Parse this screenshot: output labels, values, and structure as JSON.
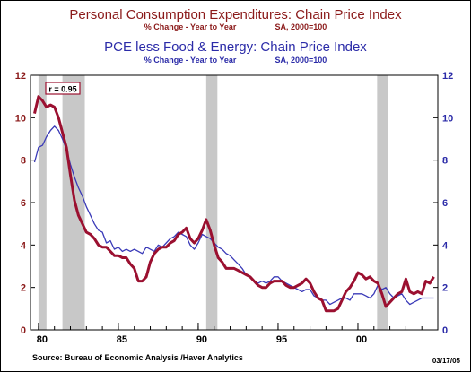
{
  "header": {
    "title_main": "Personal Consumption Expenditures: Chain Price Index",
    "subtitle_main_left": "% Change - Year to Year",
    "subtitle_main_right": "SA, 2000=100",
    "title_second": "PCE less Food & Energy: Chain Price Index",
    "subtitle_second_left": "% Change - Year to Year",
    "subtitle_second_right": "SA, 2000=100"
  },
  "footer": {
    "source": "Source:  Bureau of Economic Analysis /Haver Analytics",
    "date": "03/17/05"
  },
  "colors": {
    "pce": "#9b1030",
    "core": "#3a3ab8",
    "recession": "#c8c8c8",
    "title_main": "#8b1a1a",
    "title_second": "#2b2ba8"
  },
  "chart_data": {
    "type": "line",
    "annotation": "r = 0.95",
    "x_range": [
      1979.5,
      2005.0
    ],
    "y_left_range": [
      0,
      12
    ],
    "y_right_range": [
      0,
      12
    ],
    "y_ticks": [
      0,
      2,
      4,
      6,
      8,
      10,
      12
    ],
    "x_ticks": [
      {
        "x": 1980,
        "label": "80"
      },
      {
        "x": 1985,
        "label": "85"
      },
      {
        "x": 1990,
        "label": "90"
      },
      {
        "x": 1995,
        "label": "95"
      },
      {
        "x": 2000,
        "label": "00"
      }
    ],
    "recessions": [
      [
        1980.0,
        1980.5
      ],
      [
        1981.5,
        1982.9
      ],
      [
        1990.5,
        1991.2
      ],
      [
        2001.2,
        2001.9
      ]
    ],
    "series": [
      {
        "key": "pce",
        "points": [
          [
            1979.75,
            10.2
          ],
          [
            1980.0,
            11.0
          ],
          [
            1980.25,
            10.8
          ],
          [
            1980.5,
            10.5
          ],
          [
            1980.75,
            10.6
          ],
          [
            1981.0,
            10.5
          ],
          [
            1981.25,
            10.0
          ],
          [
            1981.5,
            9.3
          ],
          [
            1981.75,
            8.6
          ],
          [
            1982.0,
            7.3
          ],
          [
            1982.25,
            6.1
          ],
          [
            1982.5,
            5.4
          ],
          [
            1982.75,
            5.0
          ],
          [
            1983.0,
            4.6
          ],
          [
            1983.25,
            4.5
          ],
          [
            1983.5,
            4.3
          ],
          [
            1983.75,
            4.0
          ],
          [
            1984.0,
            3.9
          ],
          [
            1984.25,
            3.9
          ],
          [
            1984.5,
            3.7
          ],
          [
            1984.75,
            3.5
          ],
          [
            1985.0,
            3.5
          ],
          [
            1985.25,
            3.4
          ],
          [
            1985.5,
            3.4
          ],
          [
            1985.75,
            3.1
          ],
          [
            1986.0,
            2.9
          ],
          [
            1986.25,
            2.3
          ],
          [
            1986.5,
            2.3
          ],
          [
            1986.75,
            2.5
          ],
          [
            1987.0,
            3.2
          ],
          [
            1987.25,
            3.6
          ],
          [
            1987.5,
            3.8
          ],
          [
            1987.75,
            3.9
          ],
          [
            1988.0,
            3.9
          ],
          [
            1988.25,
            4.1
          ],
          [
            1988.5,
            4.2
          ],
          [
            1988.75,
            4.5
          ],
          [
            1989.0,
            4.6
          ],
          [
            1989.25,
            4.8
          ],
          [
            1989.5,
            4.3
          ],
          [
            1989.75,
            4.1
          ],
          [
            1990.0,
            4.3
          ],
          [
            1990.25,
            4.7
          ],
          [
            1990.5,
            5.2
          ],
          [
            1990.75,
            4.7
          ],
          [
            1991.0,
            4.0
          ],
          [
            1991.25,
            3.4
          ],
          [
            1991.5,
            3.2
          ],
          [
            1991.75,
            2.9
          ],
          [
            1992.0,
            2.9
          ],
          [
            1992.25,
            2.9
          ],
          [
            1992.5,
            2.8
          ],
          [
            1992.75,
            2.7
          ],
          [
            1993.0,
            2.6
          ],
          [
            1993.25,
            2.5
          ],
          [
            1993.5,
            2.3
          ],
          [
            1993.75,
            2.1
          ],
          [
            1994.0,
            2.0
          ],
          [
            1994.25,
            2.0
          ],
          [
            1994.5,
            2.2
          ],
          [
            1994.75,
            2.3
          ],
          [
            1995.0,
            2.3
          ],
          [
            1995.25,
            2.3
          ],
          [
            1995.5,
            2.1
          ],
          [
            1995.75,
            2.0
          ],
          [
            1996.0,
            2.0
          ],
          [
            1996.25,
            2.1
          ],
          [
            1996.5,
            2.2
          ],
          [
            1996.75,
            2.4
          ],
          [
            1997.0,
            2.2
          ],
          [
            1997.25,
            1.8
          ],
          [
            1997.5,
            1.5
          ],
          [
            1997.75,
            1.4
          ],
          [
            1998.0,
            0.9
          ],
          [
            1998.25,
            0.9
          ],
          [
            1998.5,
            0.9
          ],
          [
            1998.75,
            1.0
          ],
          [
            1999.0,
            1.4
          ],
          [
            1999.25,
            1.8
          ],
          [
            1999.5,
            2.0
          ],
          [
            1999.75,
            2.3
          ],
          [
            2000.0,
            2.7
          ],
          [
            2000.25,
            2.6
          ],
          [
            2000.5,
            2.4
          ],
          [
            2000.75,
            2.5
          ],
          [
            2001.0,
            2.3
          ],
          [
            2001.25,
            2.2
          ],
          [
            2001.5,
            1.7
          ],
          [
            2001.75,
            1.1
          ],
          [
            2002.0,
            1.3
          ],
          [
            2002.25,
            1.5
          ],
          [
            2002.5,
            1.7
          ],
          [
            2002.75,
            1.8
          ],
          [
            2003.0,
            2.4
          ],
          [
            2003.25,
            1.8
          ],
          [
            2003.5,
            1.7
          ],
          [
            2003.75,
            1.8
          ],
          [
            2004.0,
            1.7
          ],
          [
            2004.25,
            2.3
          ],
          [
            2004.5,
            2.2
          ],
          [
            2004.75,
            2.5
          ]
        ]
      },
      {
        "key": "core",
        "points": [
          [
            1979.75,
            7.9
          ],
          [
            1980.0,
            8.6
          ],
          [
            1980.25,
            8.7
          ],
          [
            1980.5,
            9.1
          ],
          [
            1980.75,
            9.4
          ],
          [
            1981.0,
            9.6
          ],
          [
            1981.25,
            9.4
          ],
          [
            1981.5,
            9.0
          ],
          [
            1981.75,
            8.5
          ],
          [
            1982.0,
            7.8
          ],
          [
            1982.25,
            7.2
          ],
          [
            1982.5,
            6.7
          ],
          [
            1982.75,
            6.3
          ],
          [
            1983.0,
            5.8
          ],
          [
            1983.25,
            5.4
          ],
          [
            1983.5,
            5.0
          ],
          [
            1983.75,
            4.7
          ],
          [
            1984.0,
            4.6
          ],
          [
            1984.25,
            4.1
          ],
          [
            1984.5,
            4.2
          ],
          [
            1984.75,
            3.8
          ],
          [
            1985.0,
            3.9
          ],
          [
            1985.25,
            3.7
          ],
          [
            1985.5,
            3.8
          ],
          [
            1985.75,
            3.7
          ],
          [
            1986.0,
            3.8
          ],
          [
            1986.25,
            3.7
          ],
          [
            1986.5,
            3.6
          ],
          [
            1986.75,
            3.9
          ],
          [
            1987.0,
            3.8
          ],
          [
            1987.25,
            3.7
          ],
          [
            1987.5,
            4.0
          ],
          [
            1987.75,
            3.9
          ],
          [
            1988.0,
            4.1
          ],
          [
            1988.25,
            4.3
          ],
          [
            1988.5,
            4.4
          ],
          [
            1988.75,
            4.6
          ],
          [
            1989.0,
            4.5
          ],
          [
            1989.25,
            4.4
          ],
          [
            1989.5,
            4.0
          ],
          [
            1989.75,
            3.8
          ],
          [
            1990.0,
            4.1
          ],
          [
            1990.25,
            4.5
          ],
          [
            1990.5,
            4.4
          ],
          [
            1990.75,
            4.3
          ],
          [
            1991.0,
            4.1
          ],
          [
            1991.25,
            3.9
          ],
          [
            1991.5,
            3.8
          ],
          [
            1991.75,
            3.6
          ],
          [
            1992.0,
            3.5
          ],
          [
            1992.25,
            3.3
          ],
          [
            1992.5,
            3.1
          ],
          [
            1992.75,
            2.9
          ],
          [
            1993.0,
            2.6
          ],
          [
            1993.25,
            2.5
          ],
          [
            1993.5,
            2.3
          ],
          [
            1993.75,
            2.2
          ],
          [
            1994.0,
            2.3
          ],
          [
            1994.25,
            2.2
          ],
          [
            1994.5,
            2.3
          ],
          [
            1994.75,
            2.5
          ],
          [
            1995.0,
            2.5
          ],
          [
            1995.25,
            2.3
          ],
          [
            1995.5,
            2.2
          ],
          [
            1995.75,
            2.1
          ],
          [
            1996.0,
            2.0
          ],
          [
            1996.25,
            1.9
          ],
          [
            1996.5,
            1.8
          ],
          [
            1996.75,
            1.9
          ],
          [
            1997.0,
            1.9
          ],
          [
            1997.25,
            1.6
          ],
          [
            1997.5,
            1.5
          ],
          [
            1997.75,
            1.4
          ],
          [
            1998.0,
            1.4
          ],
          [
            1998.25,
            1.2
          ],
          [
            1998.5,
            1.3
          ],
          [
            1998.75,
            1.4
          ],
          [
            1999.0,
            1.5
          ],
          [
            1999.25,
            1.5
          ],
          [
            1999.5,
            1.4
          ],
          [
            1999.75,
            1.7
          ],
          [
            2000.0,
            1.7
          ],
          [
            2000.25,
            1.7
          ],
          [
            2000.5,
            1.6
          ],
          [
            2000.75,
            1.5
          ],
          [
            2001.0,
            1.7
          ],
          [
            2001.25,
            2.1
          ],
          [
            2001.5,
            1.9
          ],
          [
            2001.75,
            2.0
          ],
          [
            2002.0,
            1.7
          ],
          [
            2002.25,
            1.5
          ],
          [
            2002.5,
            1.6
          ],
          [
            2002.75,
            1.7
          ],
          [
            2003.0,
            1.4
          ],
          [
            2003.25,
            1.2
          ],
          [
            2003.5,
            1.3
          ],
          [
            2003.75,
            1.4
          ],
          [
            2004.0,
            1.5
          ],
          [
            2004.25,
            1.5
          ],
          [
            2004.5,
            1.5
          ],
          [
            2004.75,
            1.5
          ]
        ]
      }
    ]
  }
}
